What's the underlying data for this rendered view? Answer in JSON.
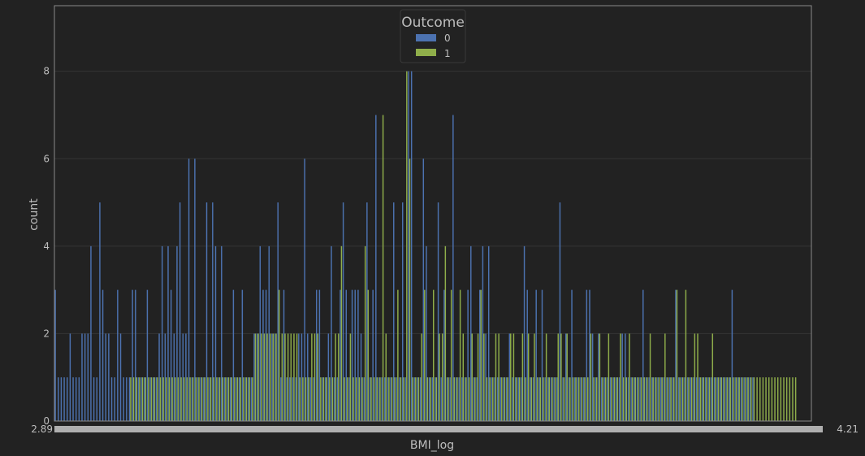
{
  "chart_data": {
    "type": "bar",
    "xlabel": "BMI_log",
    "ylabel": "count",
    "title": "",
    "ylim": [
      0,
      9.5
    ],
    "yticks": [
      0,
      2,
      4,
      6,
      8
    ],
    "grid": true,
    "legend": {
      "title": "Outcome",
      "placement": "top-center"
    },
    "x_first_tick_label": "2.89",
    "x_last_tick_label": "4.21",
    "colors": {
      "0": "#4c72b0",
      "1": "#8fae4a",
      "background": "#222222",
      "grid": "#353535",
      "axes_edge": "#8a8a8a",
      "text": "#bdbdbd"
    },
    "series": [
      {
        "name": "0",
        "values": [
          3,
          1,
          1,
          1,
          1,
          2,
          1,
          1,
          1,
          2,
          2,
          2,
          4,
          1,
          1,
          5,
          3,
          2,
          2,
          1,
          1,
          3,
          2,
          1,
          1,
          1,
          3,
          3,
          1,
          1,
          1,
          3,
          1,
          1,
          1,
          2,
          4,
          2,
          4,
          3,
          2,
          4,
          5,
          2,
          2,
          6,
          1,
          6,
          1,
          1,
          1,
          5,
          1,
          5,
          4,
          1,
          4,
          1,
          1,
          1,
          3,
          1,
          1,
          3,
          1,
          1,
          1,
          2,
          2,
          4,
          3,
          3,
          4,
          2,
          2,
          5,
          1,
          3,
          1,
          1,
          1,
          1,
          2,
          2,
          6,
          2,
          1,
          1,
          3,
          3,
          1,
          1,
          2,
          4,
          1,
          1,
          3,
          5,
          3,
          1,
          3,
          3,
          3,
          2,
          1,
          5,
          1,
          3,
          7,
          1,
          1,
          1,
          1,
          1,
          5,
          1,
          1,
          5,
          1,
          8,
          8,
          1,
          1,
          1,
          6,
          4,
          1,
          1,
          1,
          5,
          1,
          3,
          1,
          1,
          7,
          1,
          1,
          1,
          1,
          3,
          4,
          1,
          1,
          3,
          4,
          2,
          4,
          1,
          1,
          1,
          1,
          1,
          1,
          2,
          1,
          1,
          1,
          1,
          4,
          3,
          1,
          1,
          3,
          1,
          3,
          1,
          1,
          1,
          1,
          1,
          5,
          1,
          2,
          1,
          3,
          1,
          1,
          1,
          1,
          3,
          3,
          2,
          1,
          2,
          1,
          1,
          1,
          1,
          1,
          1,
          1,
          2,
          2,
          1,
          1,
          1,
          1,
          1,
          3,
          1,
          1,
          1,
          1,
          1,
          1,
          1,
          1,
          1,
          1,
          3,
          1,
          1,
          1,
          1,
          1,
          1,
          1,
          1,
          1,
          1,
          1,
          1,
          1,
          1,
          1,
          1,
          1,
          1,
          3,
          1,
          1,
          1,
          1,
          1,
          1,
          1,
          0,
          0,
          0,
          0,
          0,
          0,
          0,
          0,
          0,
          0,
          0,
          0,
          0,
          0,
          0,
          0,
          0,
          0,
          0
        ]
      },
      {
        "name": "1",
        "values": [
          0,
          0,
          0,
          0,
          0,
          0,
          0,
          0,
          0,
          0,
          0,
          0,
          0,
          0,
          0,
          0,
          0,
          0,
          0,
          0,
          0,
          0,
          0,
          0,
          0,
          1,
          1,
          1,
          1,
          1,
          1,
          1,
          1,
          1,
          1,
          1,
          1,
          1,
          1,
          1,
          1,
          1,
          1,
          1,
          1,
          1,
          1,
          1,
          1,
          1,
          1,
          1,
          1,
          1,
          1,
          1,
          1,
          1,
          1,
          1,
          1,
          1,
          1,
          1,
          1,
          1,
          1,
          2,
          2,
          2,
          2,
          2,
          2,
          2,
          2,
          3,
          2,
          2,
          2,
          2,
          2,
          2,
          1,
          1,
          1,
          1,
          2,
          2,
          2,
          1,
          1,
          1,
          1,
          1,
          2,
          2,
          4,
          1,
          1,
          2,
          1,
          1,
          1,
          1,
          4,
          3,
          1,
          1,
          1,
          1,
          7,
          2,
          1,
          1,
          1,
          3,
          1,
          1,
          8,
          6,
          1,
          1,
          1,
          2,
          3,
          1,
          1,
          3,
          1,
          2,
          2,
          4,
          1,
          3,
          1,
          1,
          3,
          2,
          1,
          1,
          2,
          1,
          2,
          3,
          2,
          1,
          1,
          1,
          2,
          2,
          1,
          1,
          1,
          2,
          2,
          1,
          1,
          2,
          1,
          2,
          1,
          2,
          1,
          1,
          1,
          2,
          1,
          1,
          1,
          2,
          2,
          1,
          2,
          1,
          1,
          1,
          1,
          1,
          1,
          1,
          2,
          1,
          1,
          2,
          1,
          1,
          2,
          1,
          1,
          1,
          2,
          1,
          1,
          2,
          1,
          1,
          1,
          1,
          1,
          1,
          2,
          1,
          1,
          1,
          1,
          2,
          1,
          1,
          1,
          3,
          1,
          1,
          3,
          1,
          1,
          2,
          2,
          1,
          1,
          1,
          1,
          2,
          1,
          1,
          1,
          1,
          1,
          1,
          1,
          1,
          1,
          1,
          1,
          1,
          1,
          1,
          1,
          1,
          1,
          1,
          1,
          1,
          1,
          1,
          1,
          1,
          1,
          1,
          1,
          1
        ]
      }
    ]
  }
}
